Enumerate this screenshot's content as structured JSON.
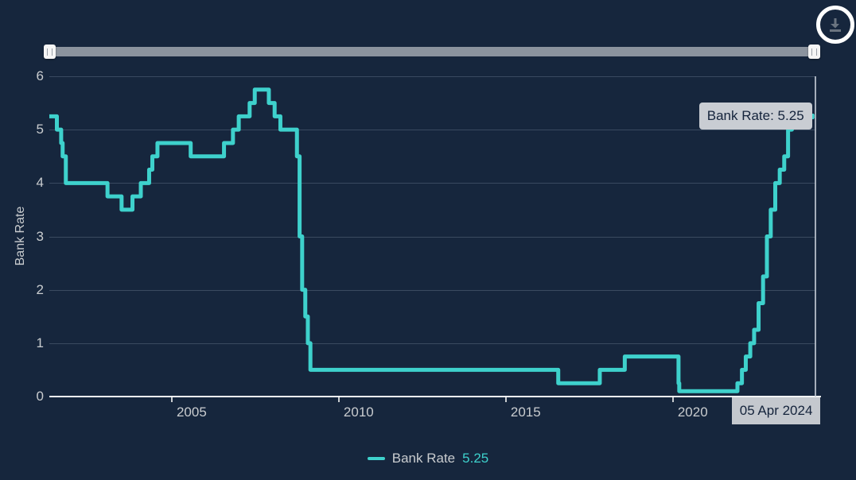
{
  "toolbar": {
    "download_icon": "download-icon"
  },
  "tooltip": {
    "text": "Bank Rate: 5.25"
  },
  "crosshair_label": {
    "text": "05 Apr 2024"
  },
  "legend": {
    "series_label": "Bank Rate",
    "value": "5.25"
  },
  "colors": {
    "background": "#16263D",
    "line": "#3ED1CC",
    "gridline": "#3A4A60",
    "axis_text": "#C9CCCF",
    "axis_line": "#F2F4F6",
    "tooltip_bg": "#C9CDD3",
    "tooltip_text": "#14233B"
  },
  "chart_data": {
    "type": "line",
    "step": true,
    "title": "",
    "xlabel": "",
    "ylabel": "Bank Rate",
    "series_name": "Bank Rate",
    "current_value": 5.25,
    "last_date_label": "05 Apr 2024",
    "ylim": [
      0,
      6
    ],
    "y_ticks": [
      0,
      1,
      2,
      3,
      4,
      5,
      6
    ],
    "x_ticks_years": [
      2005,
      2010,
      2015,
      2020
    ],
    "x_tick_labels": [
      "2005",
      "2010",
      "2015",
      "2020"
    ],
    "xlim_decimal_years": [
      2001.357,
      2024.29
    ],
    "grid": "horizontal-only",
    "legend_position": "bottom-center",
    "points": [
      {
        "date": "2001-05-10",
        "rate": 5.25
      },
      {
        "date": "2001-08-02",
        "rate": 5.0
      },
      {
        "date": "2001-09-18",
        "rate": 4.75
      },
      {
        "date": "2001-10-04",
        "rate": 4.5
      },
      {
        "date": "2001-11-08",
        "rate": 4.0
      },
      {
        "date": "2003-02-06",
        "rate": 3.75
      },
      {
        "date": "2003-07-10",
        "rate": 3.5
      },
      {
        "date": "2003-11-06",
        "rate": 3.75
      },
      {
        "date": "2004-02-05",
        "rate": 4.0
      },
      {
        "date": "2004-05-06",
        "rate": 4.25
      },
      {
        "date": "2004-06-10",
        "rate": 4.5
      },
      {
        "date": "2004-08-05",
        "rate": 4.75
      },
      {
        "date": "2005-08-04",
        "rate": 4.5
      },
      {
        "date": "2006-08-03",
        "rate": 4.75
      },
      {
        "date": "2006-11-09",
        "rate": 5.0
      },
      {
        "date": "2007-01-11",
        "rate": 5.25
      },
      {
        "date": "2007-05-10",
        "rate": 5.5
      },
      {
        "date": "2007-07-05",
        "rate": 5.75
      },
      {
        "date": "2007-12-06",
        "rate": 5.5
      },
      {
        "date": "2008-02-07",
        "rate": 5.25
      },
      {
        "date": "2008-04-10",
        "rate": 5.0
      },
      {
        "date": "2008-10-08",
        "rate": 4.5
      },
      {
        "date": "2008-11-06",
        "rate": 3.0
      },
      {
        "date": "2008-12-04",
        "rate": 2.0
      },
      {
        "date": "2009-01-08",
        "rate": 1.5
      },
      {
        "date": "2009-02-05",
        "rate": 1.0
      },
      {
        "date": "2009-03-05",
        "rate": 0.5
      },
      {
        "date": "2016-08-04",
        "rate": 0.25
      },
      {
        "date": "2017-11-02",
        "rate": 0.5
      },
      {
        "date": "2018-08-02",
        "rate": 0.75
      },
      {
        "date": "2020-03-11",
        "rate": 0.25
      },
      {
        "date": "2020-03-19",
        "rate": 0.1
      },
      {
        "date": "2021-12-16",
        "rate": 0.25
      },
      {
        "date": "2022-02-03",
        "rate": 0.5
      },
      {
        "date": "2022-03-17",
        "rate": 0.75
      },
      {
        "date": "2022-05-05",
        "rate": 1.0
      },
      {
        "date": "2022-06-16",
        "rate": 1.25
      },
      {
        "date": "2022-08-04",
        "rate": 1.75
      },
      {
        "date": "2022-09-22",
        "rate": 2.25
      },
      {
        "date": "2022-11-03",
        "rate": 3.0
      },
      {
        "date": "2022-12-15",
        "rate": 3.5
      },
      {
        "date": "2023-02-02",
        "rate": 4.0
      },
      {
        "date": "2023-03-23",
        "rate": 4.25
      },
      {
        "date": "2023-05-11",
        "rate": 4.5
      },
      {
        "date": "2023-06-22",
        "rate": 5.0
      },
      {
        "date": "2023-08-03",
        "rate": 5.25
      },
      {
        "date": "2024-04-05",
        "rate": 5.25
      }
    ]
  }
}
